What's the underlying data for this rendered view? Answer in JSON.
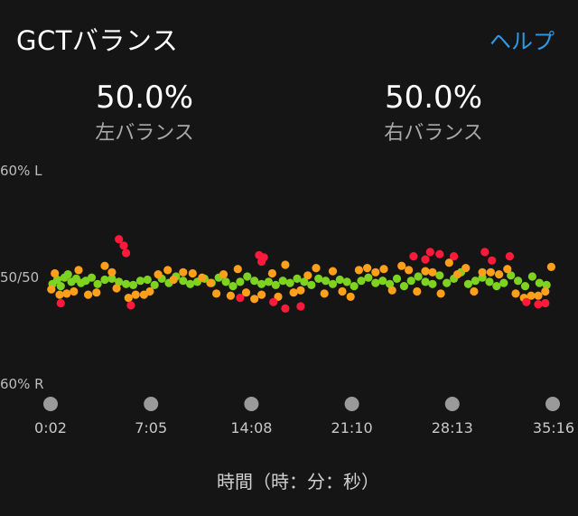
{
  "header": {
    "title": "GCTバランス",
    "help_label": "ヘルプ"
  },
  "stats": {
    "left": {
      "value": "50.0%",
      "label": "左バランス"
    },
    "right": {
      "value": "50.0%",
      "label": "右バランス"
    }
  },
  "colors": {
    "background": "#151515",
    "accent": "#2e9be6",
    "balanced": "#7ed321",
    "mild": "#ff9f1a",
    "severe": "#ff1a3c"
  },
  "chart_data": {
    "type": "scatter",
    "title": "",
    "xlabel": "時間（時：分：秒）",
    "ylabel": "",
    "y_tick_labels": [
      "60% L",
      "50/50",
      "60% R"
    ],
    "x_tick_labels": [
      "0:02",
      "7:05",
      "14:08",
      "21:10",
      "28:13",
      "35:16"
    ],
    "x_range_seconds": [
      2,
      2116
    ],
    "y_range_percent_left": [
      40,
      60
    ],
    "series": [
      {
        "color": "#7ed321",
        "points": [
          [
            10,
            49.3
          ],
          [
            30,
            49.7
          ],
          [
            45,
            49.1
          ],
          [
            60,
            49.9
          ],
          [
            75,
            50.2
          ],
          [
            90,
            49.5
          ],
          [
            110,
            49.8
          ],
          [
            130,
            49.4
          ],
          [
            150,
            49.6
          ],
          [
            175,
            49.9
          ],
          [
            200,
            49.3
          ],
          [
            230,
            49.7
          ],
          [
            260,
            49.8
          ],
          [
            290,
            49.5
          ],
          [
            320,
            49.3
          ],
          [
            350,
            49.2
          ],
          [
            380,
            49.6
          ],
          [
            410,
            49.7
          ],
          [
            440,
            49.2
          ],
          [
            470,
            49.8
          ],
          [
            500,
            49.4
          ],
          [
            530,
            50.0
          ],
          [
            560,
            49.6
          ],
          [
            590,
            49.3
          ],
          [
            620,
            49.5
          ],
          [
            650,
            49.8
          ],
          [
            680,
            49.4
          ],
          [
            710,
            49.9
          ],
          [
            740,
            49.5
          ],
          [
            770,
            49.1
          ],
          [
            800,
            49.5
          ],
          [
            830,
            50.0
          ],
          [
            860,
            49.6
          ],
          [
            890,
            49.3
          ],
          [
            920,
            49.5
          ],
          [
            950,
            49.2
          ],
          [
            980,
            49.6
          ],
          [
            1010,
            49.4
          ],
          [
            1040,
            49.8
          ],
          [
            1070,
            49.5
          ],
          [
            1100,
            49.2
          ],
          [
            1130,
            49.8
          ],
          [
            1160,
            49.6
          ],
          [
            1190,
            49.3
          ],
          [
            1220,
            49.7
          ],
          [
            1250,
            49.5
          ],
          [
            1280,
            49.1
          ],
          [
            1310,
            49.6
          ],
          [
            1340,
            49.9
          ],
          [
            1370,
            49.4
          ],
          [
            1400,
            49.6
          ],
          [
            1430,
            49.3
          ],
          [
            1460,
            49.8
          ],
          [
            1490,
            49.1
          ],
          [
            1520,
            49.6
          ],
          [
            1550,
            50.0
          ],
          [
            1580,
            49.5
          ],
          [
            1610,
            49.3
          ],
          [
            1640,
            50.1
          ],
          [
            1670,
            49.4
          ],
          [
            1700,
            49.8
          ],
          [
            1730,
            50.4
          ],
          [
            1760,
            49.3
          ],
          [
            1790,
            49.6
          ],
          [
            1820,
            49.9
          ],
          [
            1850,
            49.5
          ],
          [
            1880,
            49.1
          ],
          [
            1910,
            49.4
          ],
          [
            1940,
            50.1
          ],
          [
            1970,
            49.6
          ],
          [
            2000,
            49.1
          ],
          [
            2030,
            50.0
          ],
          [
            2060,
            49.4
          ],
          [
            2090,
            49.2
          ]
        ]
      },
      {
        "color": "#ff9f1a",
        "points": [
          [
            5,
            48.8
          ],
          [
            20,
            50.3
          ],
          [
            40,
            48.3
          ],
          [
            70,
            48.4
          ],
          [
            100,
            48.6
          ],
          [
            120,
            50.6
          ],
          [
            160,
            48.3
          ],
          [
            195,
            48.5
          ],
          [
            230,
            51.0
          ],
          [
            260,
            50.4
          ],
          [
            280,
            48.9
          ],
          [
            330,
            48.0
          ],
          [
            360,
            48.3
          ],
          [
            395,
            48.3
          ],
          [
            420,
            48.6
          ],
          [
            455,
            50.2
          ],
          [
            495,
            50.6
          ],
          [
            520,
            49.7
          ],
          [
            560,
            50.4
          ],
          [
            600,
            50.3
          ],
          [
            640,
            49.9
          ],
          [
            675,
            49.4
          ],
          [
            700,
            48.4
          ],
          [
            730,
            50.2
          ],
          [
            760,
            48.2
          ],
          [
            790,
            50.7
          ],
          [
            825,
            48.5
          ],
          [
            860,
            47.9
          ],
          [
            890,
            48.3
          ],
          [
            935,
            50.3
          ],
          [
            960,
            48.1
          ],
          [
            990,
            51.1
          ],
          [
            1025,
            48.5
          ],
          [
            1055,
            48.7
          ],
          [
            1085,
            50.1
          ],
          [
            1120,
            50.8
          ],
          [
            1155,
            48.4
          ],
          [
            1190,
            50.5
          ],
          [
            1230,
            48.6
          ],
          [
            1265,
            48.1
          ],
          [
            1300,
            50.6
          ],
          [
            1335,
            50.8
          ],
          [
            1370,
            50.4
          ],
          [
            1405,
            50.7
          ],
          [
            1440,
            48.7
          ],
          [
            1480,
            51.0
          ],
          [
            1510,
            50.6
          ],
          [
            1545,
            48.6
          ],
          [
            1580,
            50.5
          ],
          [
            1610,
            50.4
          ],
          [
            1645,
            48.4
          ],
          [
            1680,
            51.3
          ],
          [
            1715,
            50.2
          ],
          [
            1750,
            50.8
          ],
          [
            1785,
            48.6
          ],
          [
            1820,
            50.4
          ],
          [
            1855,
            50.4
          ],
          [
            1890,
            50.2
          ],
          [
            1925,
            50.7
          ],
          [
            1960,
            48.4
          ],
          [
            1995,
            48.0
          ],
          [
            2025,
            48.2
          ],
          [
            2055,
            48.2
          ],
          [
            2085,
            48.6
          ],
          [
            2110,
            50.9
          ]
        ]
      },
      {
        "color": "#ff1a3c",
        "points": [
          [
            45,
            47.5
          ],
          [
            290,
            53.5
          ],
          [
            310,
            52.9
          ],
          [
            320,
            52.2
          ],
          [
            340,
            47.3
          ],
          [
            800,
            48.0
          ],
          [
            880,
            52.0
          ],
          [
            900,
            51.8
          ],
          [
            890,
            51.4
          ],
          [
            940,
            47.6
          ],
          [
            990,
            47.0
          ],
          [
            1055,
            47.2
          ],
          [
            1530,
            51.9
          ],
          [
            1580,
            51.6
          ],
          [
            1600,
            52.3
          ],
          [
            1640,
            52.1
          ],
          [
            1700,
            51.9
          ],
          [
            1830,
            52.3
          ],
          [
            1860,
            51.5
          ],
          [
            1935,
            51.9
          ],
          [
            2005,
            47.6
          ],
          [
            2055,
            47.4
          ],
          [
            2085,
            47.5
          ]
        ]
      }
    ]
  }
}
